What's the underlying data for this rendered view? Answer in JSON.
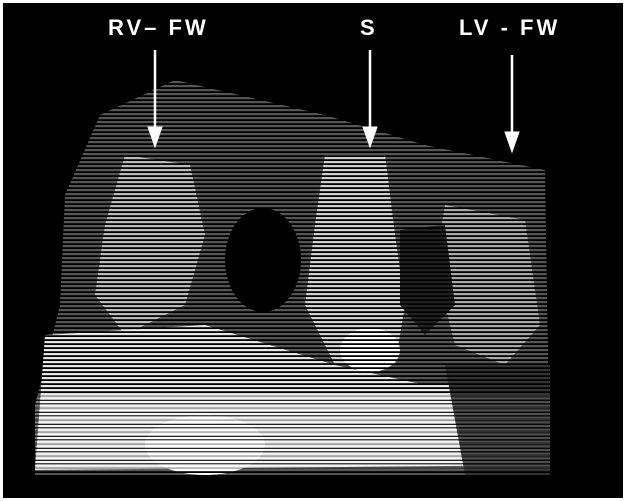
{
  "labels": {
    "rv_fw": "RV– FW",
    "septum": "S",
    "lv_fw": "LV - FW"
  },
  "colors": {
    "background": "#000000",
    "foreground": "#ffffff"
  }
}
